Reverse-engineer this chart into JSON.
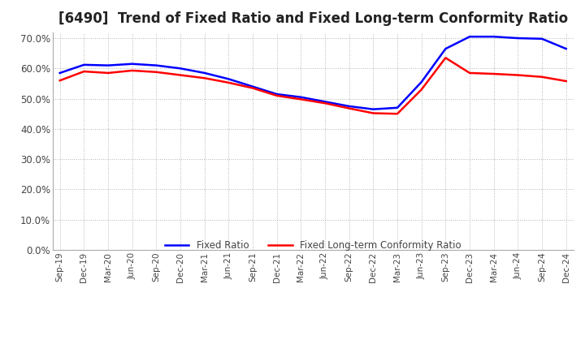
{
  "title": "[6490]  Trend of Fixed Ratio and Fixed Long-term Conformity Ratio",
  "x_labels": [
    "Sep-19",
    "Dec-19",
    "Mar-20",
    "Jun-20",
    "Sep-20",
    "Dec-20",
    "Mar-21",
    "Jun-21",
    "Sep-21",
    "Dec-21",
    "Mar-22",
    "Jun-22",
    "Sep-22",
    "Dec-22",
    "Mar-23",
    "Jun-23",
    "Sep-23",
    "Dec-23",
    "Mar-24",
    "Jun-24",
    "Sep-24",
    "Dec-24"
  ],
  "fixed_ratio": [
    0.585,
    0.612,
    0.61,
    0.615,
    0.61,
    0.6,
    0.585,
    0.565,
    0.54,
    0.515,
    0.505,
    0.49,
    0.475,
    0.465,
    0.47,
    0.555,
    0.665,
    0.705,
    0.705,
    0.7,
    0.698,
    0.665
  ],
  "fixed_lt_ratio": [
    0.56,
    0.59,
    0.585,
    0.593,
    0.588,
    0.578,
    0.568,
    0.553,
    0.535,
    0.51,
    0.498,
    0.485,
    0.468,
    0.452,
    0.45,
    0.53,
    0.635,
    0.585,
    0.582,
    0.578,
    0.572,
    0.558
  ],
  "fixed_ratio_color": "#0000FF",
  "fixed_lt_ratio_color": "#FF0000",
  "ylim": [
    0.0,
    0.72
  ],
  "yticks": [
    0.0,
    0.1,
    0.2,
    0.3,
    0.4,
    0.5,
    0.6,
    0.7
  ],
  "background_color": "#FFFFFF",
  "grid_color": "#AAAAAA",
  "title_fontsize": 12,
  "legend_fixed_ratio": "Fixed Ratio",
  "legend_fixed_lt_ratio": "Fixed Long-term Conformity Ratio"
}
